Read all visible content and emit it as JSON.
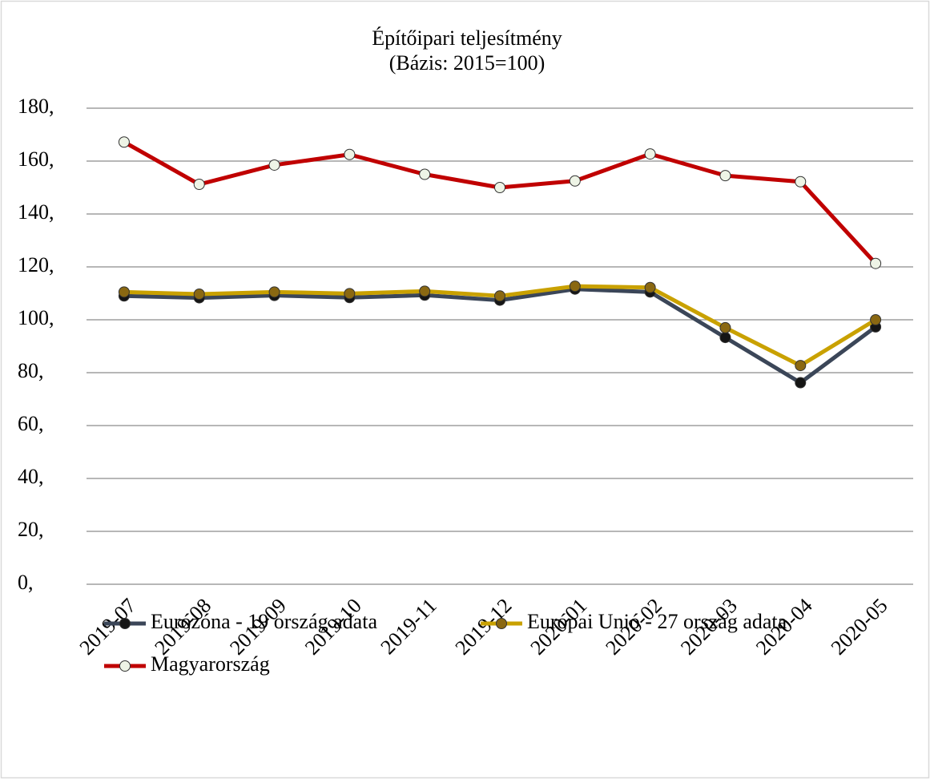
{
  "chart_data": {
    "type": "line",
    "title": "Építőipari teljesítmény",
    "subtitle": "(Bázis: 2015=100)",
    "categories": [
      "2019-07",
      "2019-08",
      "2019-09",
      "2019-10",
      "2019-11",
      "2019-12",
      "2020-01",
      "2020-02",
      "2020-03",
      "2020-04",
      "2020-05"
    ],
    "series": [
      {
        "name": "Eurózóna - 19 ország adata",
        "color": "#3b4658",
        "marker_color": "#151515",
        "values": [
          109,
          108.3,
          109.2,
          108.4,
          109.3,
          107.4,
          111.6,
          110.5,
          93.3,
          76.2,
          97.3
        ]
      },
      {
        "name": "Európai Unió - 27 ország adata",
        "color": "#c9a100",
        "marker_color": "#8a6812",
        "values": [
          110.5,
          109.7,
          110.5,
          109.9,
          110.8,
          109,
          112.7,
          112.2,
          97,
          82.7,
          100
        ]
      },
      {
        "name": "Magyarország",
        "color": "#c00000",
        "marker_color": "#eef4e6",
        "values": [
          167.2,
          151.2,
          158.5,
          162.5,
          155,
          150,
          152.5,
          162.7,
          154.5,
          152.2,
          121.3
        ]
      }
    ],
    "ylim": [
      0,
      180
    ],
    "yticks": [
      {
        "value": 0,
        "label": "0,"
      },
      {
        "value": 20,
        "label": "20,"
      },
      {
        "value": 40,
        "label": "40,"
      },
      {
        "value": 60,
        "label": "60,"
      },
      {
        "value": 80,
        "label": "80,"
      },
      {
        "value": 100,
        "label": "100,"
      },
      {
        "value": 120,
        "label": "120,"
      },
      {
        "value": 140,
        "label": "140,"
      },
      {
        "value": 160,
        "label": "160,"
      },
      {
        "value": 180,
        "label": "180,"
      }
    ],
    "grid": true,
    "legend": "bottom"
  }
}
